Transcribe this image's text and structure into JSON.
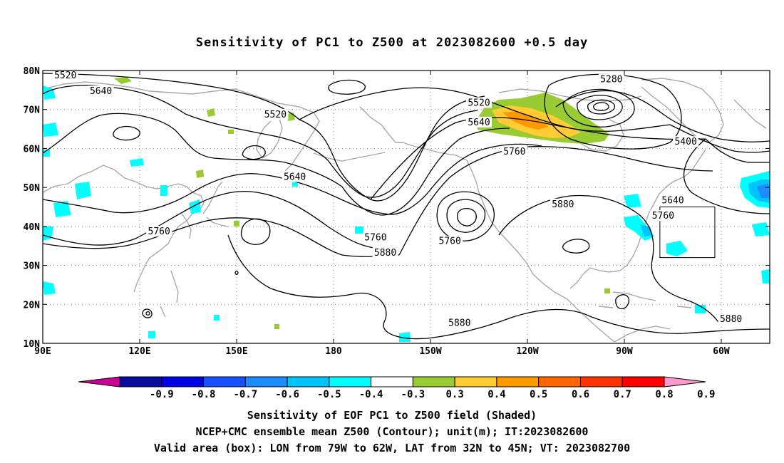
{
  "title": "Sensitivity of PC1 to Z500 at 2023082600 +0.5 day",
  "captions": [
    "Sensitivity of EOF PC1 to Z500 field (Shaded)",
    "NCEP+CMC ensemble mean Z500 (Contour); unit(m); IT:2023082600",
    "Valid area (box): LON from 79W to 62W, LAT from 32N to 45N; VT: 2023082700"
  ],
  "axes": {
    "lat_labels": [
      "80N",
      "70N",
      "60N",
      "50N",
      "40N",
      "30N",
      "20N",
      "10N"
    ],
    "lat_values": [
      80,
      70,
      60,
      50,
      40,
      30,
      20,
      10
    ],
    "lon_labels": [
      "90E",
      "120E",
      "150E",
      "180",
      "150W",
      "120W",
      "90W",
      "60W"
    ],
    "lon_values": [
      90,
      120,
      150,
      180,
      210,
      240,
      270,
      300
    ],
    "lon_range": [
      90,
      315
    ],
    "lat_range": [
      10,
      80
    ],
    "grid": "dotted"
  },
  "colorbar": {
    "labels": [
      "-0.9",
      "-0.8",
      "-0.7",
      "-0.6",
      "-0.5",
      "-0.4",
      "-0.3",
      "0.3",
      "0.4",
      "0.5",
      "0.6",
      "0.7",
      "0.8",
      "0.9"
    ],
    "colors": [
      "#0a0a9e",
      "#0000e6",
      "#1650ff",
      "#1e8cff",
      "#00c4ff",
      "#00ffff",
      "#ffffff",
      "#99cc33",
      "#ffcc33",
      "#ff9900",
      "#ff6600",
      "#ff3300",
      "#ff0000"
    ],
    "low_arrow": "#cc0099",
    "high_arrow": "#ff99cc"
  },
  "contour_labels": [
    {
      "text": "5520",
      "lon": 97,
      "lat": 78.5
    },
    {
      "text": "5640",
      "lon": 108,
      "lat": 74.5
    },
    {
      "text": "5520",
      "lon": 162,
      "lat": 68.5
    },
    {
      "text": "5640",
      "lon": 168,
      "lat": 52.5
    },
    {
      "text": "5760",
      "lon": 126,
      "lat": 38.5
    },
    {
      "text": "5760",
      "lon": 193,
      "lat": 37
    },
    {
      "text": "5880",
      "lon": 196,
      "lat": 33
    },
    {
      "text": "5520",
      "lon": 225,
      "lat": 71.5
    },
    {
      "text": "5640",
      "lon": 225,
      "lat": 66.5
    },
    {
      "text": "5760",
      "lon": 236,
      "lat": 59
    },
    {
      "text": "5280",
      "lon": 266,
      "lat": 77.5
    },
    {
      "text": "5400",
      "lon": 289,
      "lat": 61.5
    },
    {
      "text": "5760",
      "lon": 216,
      "lat": 36
    },
    {
      "text": "5880",
      "lon": 251,
      "lat": 45.5
    },
    {
      "text": "5640",
      "lon": 285,
      "lat": 46.5
    },
    {
      "text": "5760",
      "lon": 282,
      "lat": 42.5
    },
    {
      "text": "5880",
      "lon": 219,
      "lat": 15
    },
    {
      "text": "5880",
      "lon": 303,
      "lat": 16
    }
  ],
  "valid_box": {
    "lon_min": 281,
    "lon_max": 298,
    "lat_min": 32,
    "lat_max": 45
  },
  "colors": {
    "contour": "#000000",
    "coast": "#a9a9a9",
    "grid": "#888888"
  }
}
